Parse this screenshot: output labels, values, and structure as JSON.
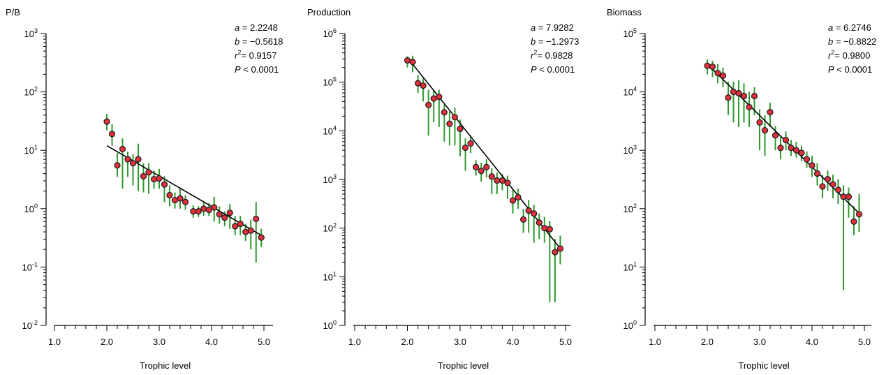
{
  "chart_data": [
    {
      "type": "scatter",
      "title": "P/B",
      "xlabel": "Trophic level",
      "ylabel": "",
      "yscale": "log",
      "xlim": [
        1.0,
        5.0
      ],
      "ylim": [
        0.01,
        1000
      ],
      "x_ticks": [
        "1.0",
        "2.0",
        "3.0",
        "4.0",
        "5.0"
      ],
      "y_ticks": [
        {
          "base": "10",
          "exp": "-2"
        },
        {
          "base": "10",
          "exp": "-1"
        },
        {
          "base": "10",
          "exp": "0"
        },
        {
          "base": "10",
          "exp": "1"
        },
        {
          "base": "10",
          "exp": "2"
        },
        {
          "base": "10",
          "exp": "3"
        }
      ],
      "stats": {
        "a": "2.2248",
        "b": "−0.5618",
        "r2": "0.9157",
        "P": "0.0001"
      },
      "fit": {
        "x_start": 2.0,
        "x_end": 4.95,
        "y_start": 12,
        "y_end": 0.35
      },
      "points": [
        {
          "x": 2.0,
          "y": 31,
          "lo": 22,
          "hi": 42
        },
        {
          "x": 2.1,
          "y": 19,
          "lo": 12,
          "hi": 28
        },
        {
          "x": 2.2,
          "y": 5.5,
          "lo": 3.5,
          "hi": 9
        },
        {
          "x": 2.3,
          "y": 10.5,
          "lo": 2.2,
          "hi": 16
        },
        {
          "x": 2.4,
          "y": 7,
          "lo": 3.5,
          "hi": 9.5
        },
        {
          "x": 2.5,
          "y": 6,
          "lo": 2.5,
          "hi": 8.5
        },
        {
          "x": 2.6,
          "y": 7,
          "lo": 2,
          "hi": 13
        },
        {
          "x": 2.7,
          "y": 3.6,
          "lo": 1.9,
          "hi": 6
        },
        {
          "x": 2.8,
          "y": 4.2,
          "lo": 1.8,
          "hi": 6
        },
        {
          "x": 2.9,
          "y": 3.2,
          "lo": 2.2,
          "hi": 4.5
        },
        {
          "x": 3.0,
          "y": 3.3,
          "lo": 2.2,
          "hi": 4.8
        },
        {
          "x": 3.1,
          "y": 2.6,
          "lo": 1.3,
          "hi": 3.6
        },
        {
          "x": 3.2,
          "y": 1.7,
          "lo": 1.1,
          "hi": 2.5
        },
        {
          "x": 3.3,
          "y": 1.4,
          "lo": 1.0,
          "hi": 1.9
        },
        {
          "x": 3.4,
          "y": 1.5,
          "lo": 1.0,
          "hi": 2.2
        },
        {
          "x": 3.5,
          "y": 1.3,
          "lo": 0.95,
          "hi": 1.7
        },
        {
          "x": 3.65,
          "y": 0.9,
          "lo": 0.7,
          "hi": 1.15
        },
        {
          "x": 3.75,
          "y": 0.9,
          "lo": 0.72,
          "hi": 1.1
        },
        {
          "x": 3.85,
          "y": 1.0,
          "lo": 0.75,
          "hi": 1.3
        },
        {
          "x": 3.95,
          "y": 0.95,
          "lo": 0.75,
          "hi": 1.25
        },
        {
          "x": 4.05,
          "y": 1.05,
          "lo": 0.6,
          "hi": 1.6
        },
        {
          "x": 4.15,
          "y": 0.8,
          "lo": 0.55,
          "hi": 1.1
        },
        {
          "x": 4.25,
          "y": 0.7,
          "lo": 0.5,
          "hi": 0.9
        },
        {
          "x": 4.35,
          "y": 0.85,
          "lo": 0.45,
          "hi": 1.2
        },
        {
          "x": 4.45,
          "y": 0.5,
          "lo": 0.35,
          "hi": 0.75
        },
        {
          "x": 4.55,
          "y": 0.55,
          "lo": 0.35,
          "hi": 0.75
        },
        {
          "x": 4.65,
          "y": 0.4,
          "lo": 0.28,
          "hi": 0.55
        },
        {
          "x": 4.75,
          "y": 0.42,
          "lo": 0.2,
          "hi": 0.65
        },
        {
          "x": 4.85,
          "y": 0.67,
          "lo": 0.12,
          "hi": 1.3
        },
        {
          "x": 4.95,
          "y": 0.32,
          "lo": 0.22,
          "hi": 0.45
        }
      ]
    },
    {
      "type": "scatter",
      "title": "Production",
      "xlabel": "Trophic level",
      "ylabel": "",
      "yscale": "log",
      "xlim": [
        1.0,
        5.0
      ],
      "ylim": [
        1,
        1000000
      ],
      "x_ticks": [
        "1.0",
        "2.0",
        "3.0",
        "4.0",
        "5.0"
      ],
      "y_ticks": [
        {
          "base": "10",
          "exp": "0"
        },
        {
          "base": "10",
          "exp": "1"
        },
        {
          "base": "10",
          "exp": "2"
        },
        {
          "base": "10",
          "exp": "3"
        },
        {
          "base": "10",
          "exp": "4"
        },
        {
          "base": "10",
          "exp": "5"
        },
        {
          "base": "10",
          "exp": "6"
        }
      ],
      "stats": {
        "a": "7.9282",
        "b": "−1.2973",
        "r2": "0.9828",
        "P": "0.0001"
      },
      "fit": {
        "x_start": 2.0,
        "x_end": 4.92,
        "y_start": 320000,
        "y_end": 36
      },
      "points": [
        {
          "x": 2.0,
          "y": 280000,
          "lo": 200000,
          "hi": 340000
        },
        {
          "x": 2.1,
          "y": 260000,
          "lo": 160000,
          "hi": 350000
        },
        {
          "x": 2.2,
          "y": 95000,
          "lo": 60000,
          "hi": 140000
        },
        {
          "x": 2.3,
          "y": 85000,
          "lo": 40000,
          "hi": 120000
        },
        {
          "x": 2.4,
          "y": 34000,
          "lo": 8000,
          "hi": 70000
        },
        {
          "x": 2.5,
          "y": 46000,
          "lo": 15000,
          "hi": 70000
        },
        {
          "x": 2.6,
          "y": 50000,
          "lo": 12000,
          "hi": 70000
        },
        {
          "x": 2.7,
          "y": 24000,
          "lo": 6000,
          "hi": 35000
        },
        {
          "x": 2.8,
          "y": 14000,
          "lo": 5000,
          "hi": 25000
        },
        {
          "x": 2.9,
          "y": 19000,
          "lo": 5000,
          "hi": 30000
        },
        {
          "x": 3.0,
          "y": 11000,
          "lo": 3000,
          "hi": 17000
        },
        {
          "x": 3.1,
          "y": 4500,
          "lo": 1500,
          "hi": 7000
        },
        {
          "x": 3.2,
          "y": 5500,
          "lo": 3500,
          "hi": 8000
        },
        {
          "x": 3.3,
          "y": 1800,
          "lo": 1200,
          "hi": 2500
        },
        {
          "x": 3.4,
          "y": 1500,
          "lo": 900,
          "hi": 2200
        },
        {
          "x": 3.5,
          "y": 1800,
          "lo": 1100,
          "hi": 2600
        },
        {
          "x": 3.6,
          "y": 1150,
          "lo": 500,
          "hi": 1700
        },
        {
          "x": 3.7,
          "y": 950,
          "lo": 500,
          "hi": 1400
        },
        {
          "x": 3.8,
          "y": 950,
          "lo": 600,
          "hi": 1300
        },
        {
          "x": 3.9,
          "y": 850,
          "lo": 400,
          "hi": 1200
        },
        {
          "x": 4.0,
          "y": 370,
          "lo": 200,
          "hi": 600
        },
        {
          "x": 4.1,
          "y": 430,
          "lo": 250,
          "hi": 650
        },
        {
          "x": 4.2,
          "y": 150,
          "lo": 80,
          "hi": 250
        },
        {
          "x": 4.3,
          "y": 230,
          "lo": 80,
          "hi": 380
        },
        {
          "x": 4.4,
          "y": 200,
          "lo": 50,
          "hi": 300
        },
        {
          "x": 4.5,
          "y": 130,
          "lo": 60,
          "hi": 200
        },
        {
          "x": 4.6,
          "y": 100,
          "lo": 50,
          "hi": 170
        },
        {
          "x": 4.7,
          "y": 95,
          "lo": 3,
          "hi": 140
        },
        {
          "x": 4.8,
          "y": 32,
          "lo": 3,
          "hi": 60
        },
        {
          "x": 4.9,
          "y": 38,
          "lo": 18,
          "hi": 70
        }
      ]
    },
    {
      "type": "scatter",
      "title": "Biomass",
      "xlabel": "Trophic level",
      "ylabel": "",
      "yscale": "log",
      "xlim": [
        1.0,
        5.0
      ],
      "ylim": [
        1,
        100000
      ],
      "x_ticks": [
        "1.0",
        "2.0",
        "3.0",
        "4.0",
        "5.0"
      ],
      "y_ticks": [
        {
          "base": "10",
          "exp": "0"
        },
        {
          "base": "10",
          "exp": "1"
        },
        {
          "base": "10",
          "exp": "2"
        },
        {
          "base": "10",
          "exp": "3"
        },
        {
          "base": "10",
          "exp": "4"
        },
        {
          "base": "10",
          "exp": "5"
        }
      ],
      "stats": {
        "a": "6.2746",
        "b": "−0.8822",
        "r2": "0.9800",
        "P": "0.0001"
      },
      "fit": {
        "x_start": 2.0,
        "x_end": 4.92,
        "y_start": 30000,
        "y_end": 80
      },
      "points": [
        {
          "x": 2.0,
          "y": 28000,
          "lo": 20000,
          "hi": 36000
        },
        {
          "x": 2.1,
          "y": 27000,
          "lo": 18000,
          "hi": 34000
        },
        {
          "x": 2.2,
          "y": 21000,
          "lo": 14000,
          "hi": 30000
        },
        {
          "x": 2.3,
          "y": 19000,
          "lo": 12000,
          "hi": 26000
        },
        {
          "x": 2.4,
          "y": 8000,
          "lo": 4000,
          "hi": 15000
        },
        {
          "x": 2.5,
          "y": 10000,
          "lo": 3000,
          "hi": 15000
        },
        {
          "x": 2.6,
          "y": 9500,
          "lo": 2500,
          "hi": 16000
        },
        {
          "x": 2.7,
          "y": 8500,
          "lo": 3000,
          "hi": 14000
        },
        {
          "x": 2.8,
          "y": 5500,
          "lo": 2500,
          "hi": 10000
        },
        {
          "x": 2.9,
          "y": 8500,
          "lo": 4000,
          "hi": 12000
        },
        {
          "x": 3.0,
          "y": 3000,
          "lo": 1000,
          "hi": 5000
        },
        {
          "x": 3.1,
          "y": 2200,
          "lo": 800,
          "hi": 4000
        },
        {
          "x": 3.2,
          "y": 4500,
          "lo": 2500,
          "hi": 6500
        },
        {
          "x": 3.3,
          "y": 1800,
          "lo": 1000,
          "hi": 2600
        },
        {
          "x": 3.4,
          "y": 1100,
          "lo": 700,
          "hi": 1700
        },
        {
          "x": 3.5,
          "y": 1500,
          "lo": 1000,
          "hi": 2100
        },
        {
          "x": 3.6,
          "y": 1100,
          "lo": 800,
          "hi": 1500
        },
        {
          "x": 3.7,
          "y": 1000,
          "lo": 750,
          "hi": 1400
        },
        {
          "x": 3.8,
          "y": 900,
          "lo": 650,
          "hi": 1200
        },
        {
          "x": 3.9,
          "y": 700,
          "lo": 500,
          "hi": 950
        },
        {
          "x": 4.0,
          "y": 550,
          "lo": 350,
          "hi": 800
        },
        {
          "x": 4.1,
          "y": 400,
          "lo": 250,
          "hi": 600
        },
        {
          "x": 4.2,
          "y": 240,
          "lo": 150,
          "hi": 380
        },
        {
          "x": 4.3,
          "y": 320,
          "lo": 200,
          "hi": 450
        },
        {
          "x": 4.4,
          "y": 260,
          "lo": 150,
          "hi": 380
        },
        {
          "x": 4.5,
          "y": 210,
          "lo": 120,
          "hi": 320
        },
        {
          "x": 4.6,
          "y": 160,
          "lo": 4,
          "hi": 250
        },
        {
          "x": 4.7,
          "y": 160,
          "lo": 70,
          "hi": 230
        },
        {
          "x": 4.8,
          "y": 60,
          "lo": 35,
          "hi": 110
        },
        {
          "x": 4.9,
          "y": 80,
          "lo": 40,
          "hi": 180
        }
      ]
    }
  ]
}
